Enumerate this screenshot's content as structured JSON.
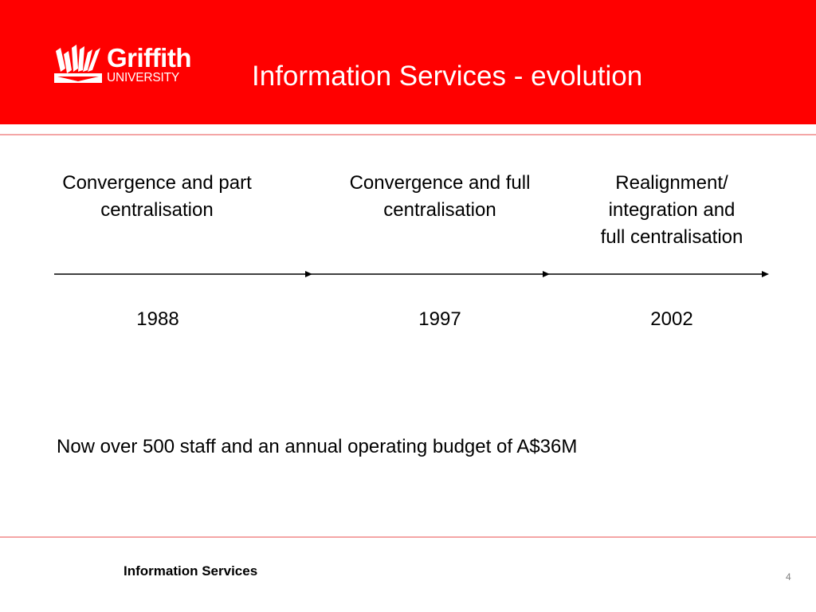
{
  "header": {
    "logo": {
      "name": "Griffith",
      "subtitle": "UNIVERSITY"
    },
    "title": "Information Services - evolution",
    "color": "#ff0000"
  },
  "timeline": {
    "stages": [
      {
        "label_lines": [
          "Convergence and part",
          "centralisation"
        ],
        "year": "1988"
      },
      {
        "label_lines": [
          "Convergence and full",
          "centralisation"
        ],
        "year": "1997"
      },
      {
        "label_lines": [
          "Realignment/",
          "integration and",
          "full centralisation"
        ],
        "year": "2002"
      }
    ]
  },
  "summary": "Now over 500 staff and an annual operating budget of A$36M",
  "footer": {
    "text": "Information Services",
    "page_number": "4"
  },
  "colors": {
    "accent": "#ff0000",
    "divider": "#f4a6a6"
  }
}
